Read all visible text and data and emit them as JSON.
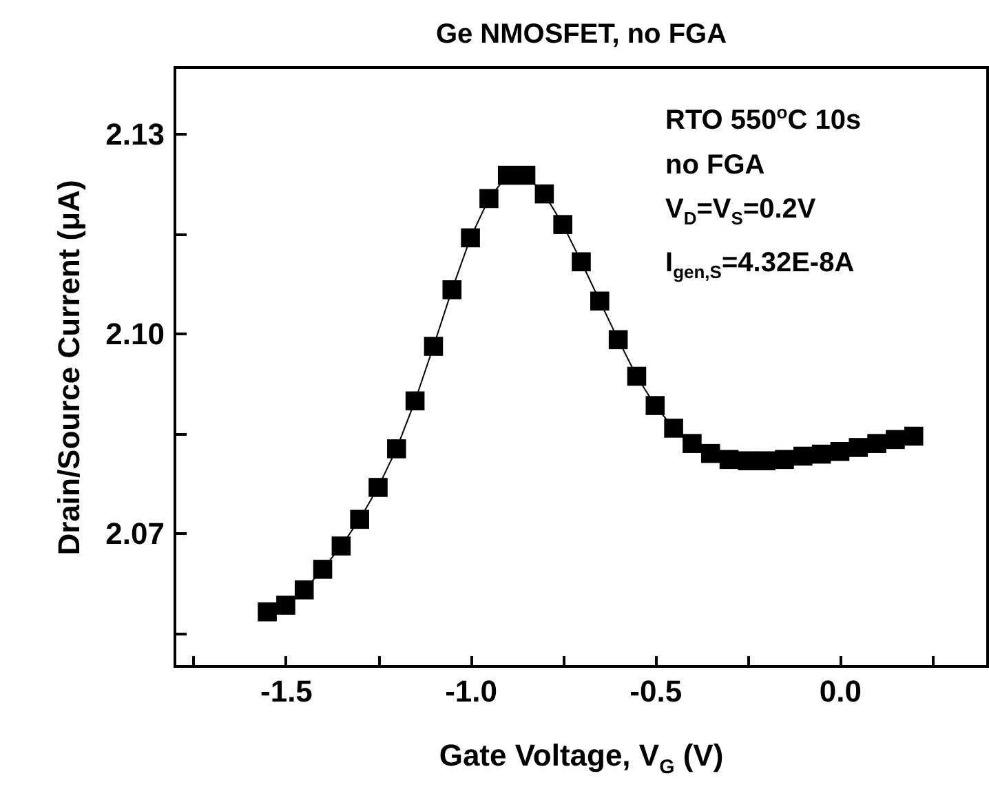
{
  "chart_data": {
    "type": "line",
    "title": "Ge NMOSFET, no FGA",
    "xlabel": "Gate Voltage, V$_{G}$ (V)",
    "ylabel": "Drain/Source Current (μA)",
    "annotations": [
      "RTO 550$^{o}$C 10s",
      "no FGA",
      "V$_{D}$=V$_{S}$=0.2V",
      "I$_{gen,S}$=4.32E-8A"
    ],
    "x": [
      -1.55,
      -1.5,
      -1.45,
      -1.4,
      -1.35,
      -1.3,
      -1.25,
      -1.2,
      -1.15,
      -1.1,
      -1.05,
      -1.0,
      -0.95,
      -0.9,
      -0.85,
      -0.8,
      -0.75,
      -0.7,
      -0.65,
      -0.6,
      -0.55,
      -0.5,
      -0.45,
      -0.4,
      -0.35,
      -0.3,
      -0.25,
      -0.2,
      -0.15,
      -0.1,
      -0.05,
      0.0,
      0.05,
      0.1,
      0.15,
      0.2
    ],
    "series": [
      {
        "color": "#000000",
        "values": [
          2.0582,
          2.0592,
          2.0615,
          2.0646,
          2.0681,
          2.0721,
          2.0769,
          2.0827,
          2.0899,
          2.0981,
          2.1066,
          2.1144,
          2.1203,
          2.1238,
          2.1238,
          2.121,
          2.1164,
          2.1108,
          2.1049,
          2.0991,
          2.0936,
          2.0892,
          2.0858,
          2.0835,
          2.082,
          2.0811,
          2.0809,
          2.0809,
          2.0811,
          2.0816,
          2.0819,
          2.0823,
          2.0829,
          2.0835,
          2.0841,
          2.0846
        ]
      }
    ],
    "xlim": [
      -1.8,
      0.4
    ],
    "ylim": [
      2.05,
      2.14
    ],
    "xticks": [
      {
        "value": -1.75,
        "label": null
      },
      -1.5,
      {
        "value": -1.25,
        "label": null
      },
      {
        "value": -1,
        "label": "-1.0"
      },
      {
        "value": -0.75,
        "label": null
      },
      -0.5,
      {
        "value": -0.25,
        "label": null
      },
      {
        "value": 0,
        "label": "0.0"
      },
      {
        "value": 0.25,
        "label": null
      }
    ],
    "yticks": [
      {
        "value": 2.055,
        "label": null
      },
      2.07,
      {
        "value": 2.085,
        "label": null
      },
      {
        "value": 2.1,
        "label": "2.10"
      },
      {
        "value": 2.115,
        "label": null
      },
      2.13
    ],
    "marker": "square",
    "line_style": "solid",
    "grid": false,
    "legend": false
  }
}
